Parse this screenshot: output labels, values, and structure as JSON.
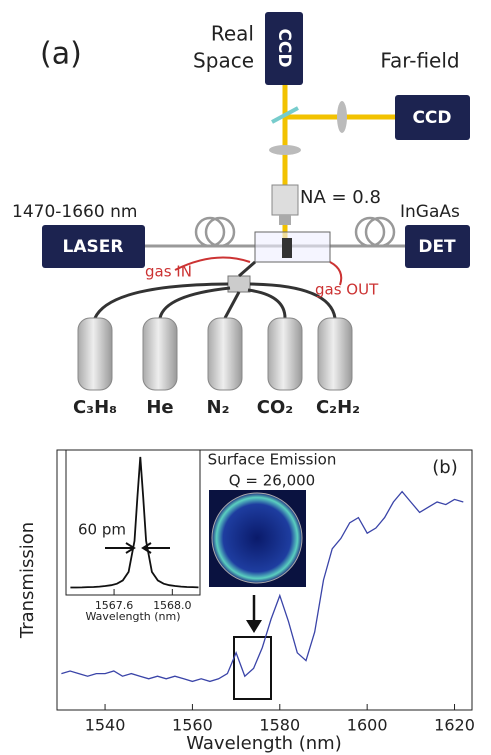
{
  "setup": {
    "panel_label": "(a)",
    "real_space": [
      "Real",
      "Space"
    ],
    "ccd_top": "CCD",
    "far_field": "Far-field",
    "ccd_right": "CCD",
    "na": "NA = 0.8",
    "wavelength_range": "1470-1660 nm",
    "detector_type": "InGaAs",
    "laser": "LASER",
    "det": "DET",
    "gas_in": "gas IN",
    "gas_out": "gas OUT",
    "gases": [
      "C₃H₈",
      "He",
      "N₂",
      "CO₂",
      "C₂H₂"
    ]
  },
  "chart_data": [
    {
      "type": "line",
      "panel_label": "(b)",
      "x_label": "Wavelength (nm)",
      "y_label": "Transmission",
      "annotations": [
        "Surface Emission",
        "Q = 26,000"
      ],
      "x": [
        1530,
        1532,
        1534,
        1536,
        1538,
        1540,
        1542,
        1544,
        1546,
        1548,
        1550,
        1552,
        1554,
        1556,
        1558,
        1560,
        1562,
        1564,
        1566,
        1568,
        1570,
        1572,
        1574,
        1576,
        1578,
        1580,
        1582,
        1584,
        1586,
        1588,
        1590,
        1592,
        1594,
        1596,
        1598,
        1600,
        1602,
        1604,
        1606,
        1608,
        1610,
        1612,
        1614,
        1616,
        1618,
        1620,
        1622
      ],
      "series": [
        {
          "color": "#3a44a8",
          "values": [
            0.14,
            0.15,
            0.14,
            0.13,
            0.14,
            0.14,
            0.15,
            0.13,
            0.14,
            0.13,
            0.12,
            0.13,
            0.12,
            0.13,
            0.12,
            0.11,
            0.12,
            0.11,
            0.12,
            0.14,
            0.22,
            0.13,
            0.16,
            0.24,
            0.35,
            0.44,
            0.34,
            0.22,
            0.19,
            0.3,
            0.5,
            0.62,
            0.66,
            0.72,
            0.74,
            0.68,
            0.7,
            0.74,
            0.8,
            0.84,
            0.8,
            0.76,
            0.78,
            0.8,
            0.79,
            0.81,
            0.8
          ]
        }
      ],
      "xlim": [
        1529,
        1624
      ],
      "ylim": [
        0,
        1
      ],
      "xticks": [
        1540,
        1560,
        1580,
        1600,
        1620
      ]
    },
    {
      "type": "line",
      "x_label": "Wavelength (nm)",
      "annotations": [
        "60 pm"
      ],
      "x": [
        1567.3,
        1567.34,
        1567.38,
        1567.42,
        1567.46,
        1567.5,
        1567.54,
        1567.58,
        1567.62,
        1567.66,
        1567.7,
        1567.74,
        1567.76,
        1567.78,
        1567.8,
        1567.82,
        1567.86,
        1567.9,
        1567.94,
        1567.98,
        1568.02,
        1568.06,
        1568.1,
        1568.14,
        1568.18
      ],
      "series": [
        {
          "color": "#111111",
          "values": [
            0.054,
            0.054,
            0.055,
            0.057,
            0.058,
            0.061,
            0.065,
            0.071,
            0.082,
            0.106,
            0.167,
            0.392,
            0.708,
            1,
            0.708,
            0.392,
            0.167,
            0.106,
            0.082,
            0.071,
            0.065,
            0.061,
            0.058,
            0.057,
            0.055
          ]
        }
      ],
      "xlim": [
        1567.27,
        1568.19
      ],
      "ylim": [
        0,
        1.05
      ],
      "xticks": [
        {
          "value": 1567.6,
          "label": "1567.6"
        },
        {
          "value": 1568.0,
          "label": "1568.0"
        }
      ]
    }
  ]
}
